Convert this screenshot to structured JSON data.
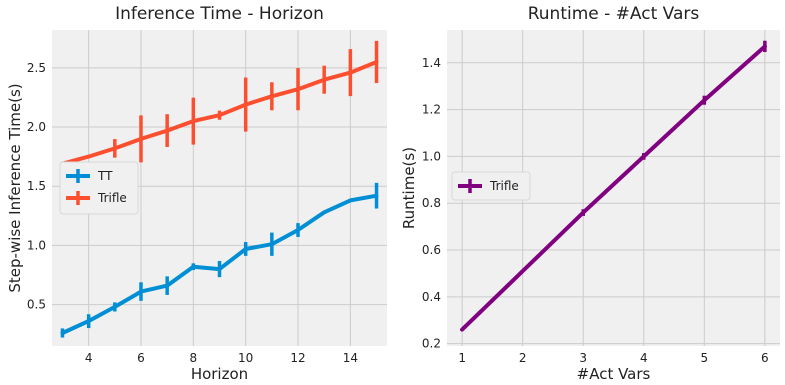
{
  "chart_data": [
    {
      "type": "line",
      "title": "Inference Time - Horizon",
      "xlabel": "Horizon",
      "ylabel": "Step-wise Inference Time(s)",
      "xlim": [
        2.6,
        15.4
      ],
      "ylim": [
        0.15,
        2.82
      ],
      "xticks": [
        4,
        6,
        8,
        10,
        12,
        14
      ],
      "yticks": [
        0.5,
        1.0,
        1.5,
        2.0,
        2.5
      ],
      "ytick_labels": [
        "0.5",
        "1.0",
        "1.5",
        "2.0",
        "2.5"
      ],
      "grid": true,
      "legend_position": "center-left",
      "series": [
        {
          "name": "TT",
          "color": "#008fd5",
          "x": [
            3,
            4,
            5,
            6,
            7,
            8,
            9,
            10,
            11,
            12,
            13,
            14,
            15
          ],
          "y": [
            0.26,
            0.36,
            0.48,
            0.61,
            0.66,
            0.82,
            0.8,
            0.97,
            1.01,
            1.13,
            1.28,
            1.38,
            1.42
          ],
          "err": [
            0.03,
            0.05,
            0.03,
            0.07,
            0.07,
            0.02,
            0.06,
            0.05,
            0.09,
            0.05,
            0.0,
            0.0,
            0.1
          ]
        },
        {
          "name": "Trifle",
          "color": "#fc4f30",
          "x": [
            3,
            4,
            5,
            6,
            7,
            8,
            9,
            10,
            11,
            12,
            13,
            14,
            15
          ],
          "y": [
            1.69,
            1.75,
            1.82,
            1.9,
            1.97,
            2.05,
            2.1,
            2.19,
            2.26,
            2.32,
            2.4,
            2.46,
            2.55
          ],
          "err": [
            0.0,
            0.0,
            0.07,
            0.19,
            0.13,
            0.19,
            0.03,
            0.22,
            0.11,
            0.17,
            0.11,
            0.19,
            0.17
          ]
        }
      ]
    },
    {
      "type": "line",
      "title": "Runtime - #Act Vars",
      "xlabel": "#Act Vars",
      "ylabel": "Runtime(s)",
      "xlim": [
        0.75,
        6.25
      ],
      "ylim": [
        0.19,
        1.54
      ],
      "xticks": [
        1,
        2,
        3,
        4,
        5,
        6
      ],
      "yticks": [
        0.2,
        0.4,
        0.6,
        0.8,
        1.0,
        1.2,
        1.4
      ],
      "ytick_labels": [
        "0.2",
        "0.4",
        "0.6",
        "0.8",
        "1.0",
        "1.2",
        "1.4"
      ],
      "grid": true,
      "legend_position": "center-left",
      "series": [
        {
          "name": "Trifle",
          "color": "#800080",
          "x": [
            1,
            2,
            3,
            4,
            5,
            6
          ],
          "y": [
            0.26,
            0.51,
            0.76,
            1.0,
            1.24,
            1.47
          ],
          "err": [
            0.0,
            0.0,
            0.01,
            0.01,
            0.015,
            0.02
          ]
        }
      ]
    }
  ]
}
